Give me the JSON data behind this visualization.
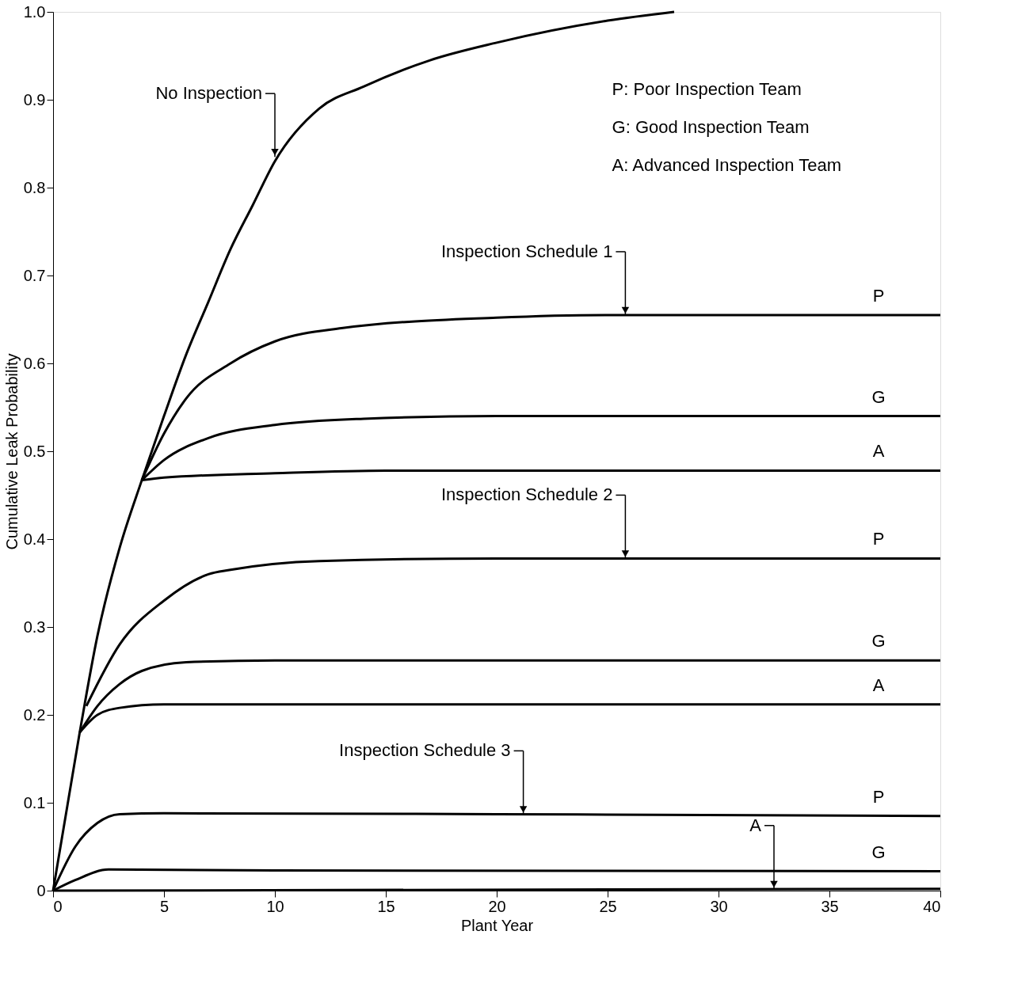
{
  "chart_data": {
    "type": "line",
    "xlabel": "Plant Year",
    "ylabel": "Cumulative Leak Probability",
    "xlim": [
      0,
      40
    ],
    "ylim": [
      0,
      1.0
    ],
    "xticks": [
      0,
      5,
      10,
      15,
      20,
      25,
      30,
      35,
      40
    ],
    "yticks": [
      0,
      0.1,
      0.2,
      0.3,
      0.4,
      0.5,
      0.6,
      0.7,
      0.8,
      0.9,
      {
        "value": 1.0,
        "label": "1.0"
      }
    ],
    "grid": false,
    "marker": "none",
    "line_style": "solid",
    "series": [
      {
        "color": "#000000",
        "x": [
          0,
          1.2,
          2,
          3,
          4,
          5,
          6,
          7,
          8,
          9,
          10,
          12,
          14,
          17,
          20,
          25,
          28
        ],
        "values": [
          0,
          0.18,
          0.29,
          0.39,
          0.467,
          0.54,
          0.61,
          0.67,
          0.73,
          0.78,
          0.83,
          0.89,
          0.915,
          0.945,
          0.965,
          0.99,
          1.0
        ]
      },
      {
        "name": "P",
        "color": "#000000",
        "x": [
          4,
          5,
          6,
          8,
          10,
          13,
          20,
          25,
          40
        ],
        "values": [
          0.467,
          0.52,
          0.56,
          0.6,
          0.625,
          0.64,
          0.652,
          0.655,
          0.655
        ]
      },
      {
        "name": "G",
        "color": "#000000",
        "x": [
          4,
          5,
          7,
          10,
          14,
          20,
          40
        ],
        "values": [
          0.467,
          0.49,
          0.515,
          0.53,
          0.537,
          0.54,
          0.54
        ]
      },
      {
        "name": "A",
        "color": "#000000",
        "x": [
          4,
          5,
          10,
          15,
          40
        ],
        "values": [
          0.467,
          0.47,
          0.475,
          0.478,
          0.478
        ]
      },
      {
        "name": "P",
        "color": "#000000",
        "x": [
          1.5,
          3,
          5,
          7,
          8,
          12,
          20,
          40
        ],
        "values": [
          0.21,
          0.28,
          0.33,
          0.36,
          0.365,
          0.375,
          0.378,
          0.378
        ]
      },
      {
        "name": "G",
        "color": "#000000",
        "x": [
          1.2,
          2,
          3,
          4,
          6,
          10,
          40
        ],
        "values": [
          0.18,
          0.21,
          0.235,
          0.25,
          0.26,
          0.262,
          0.262
        ]
      },
      {
        "name": "A",
        "color": "#000000",
        "x": [
          1.2,
          2,
          3,
          5,
          40
        ],
        "values": [
          0.18,
          0.2,
          0.208,
          0.212,
          0.212
        ]
      },
      {
        "name": "P",
        "color": "#000000",
        "x": [
          0,
          1,
          2,
          3,
          5,
          20,
          40
        ],
        "values": [
          0,
          0.05,
          0.077,
          0.087,
          0.088,
          0.087,
          0.085
        ]
      },
      {
        "name": "G",
        "color": "#000000",
        "x": [
          0,
          1,
          2.5,
          10,
          40
        ],
        "values": [
          0,
          0.012,
          0.024,
          0.023,
          0.022
        ]
      },
      {
        "color": "#000000",
        "x": [
          0,
          40
        ],
        "values": [
          0,
          0.002
        ]
      }
    ],
    "annotations": [
      {
        "text": "No Inspection",
        "x": 10,
        "y": 0.835
      },
      {
        "text": "Inspection Schedule 1",
        "x": 25.8,
        "y": 0.655
      },
      {
        "text": "Inspection Schedule 2",
        "x": 25.8,
        "y": 0.378
      },
      {
        "text": "Inspection Schedule 3",
        "x": 21.2,
        "y": 0.087
      },
      {
        "text": "A",
        "x": 32.5,
        "y": 0.002
      },
      "P: Poor Inspection Team",
      "G: Good Inspection Team",
      "A: Advanced Inspection Team"
    ]
  }
}
